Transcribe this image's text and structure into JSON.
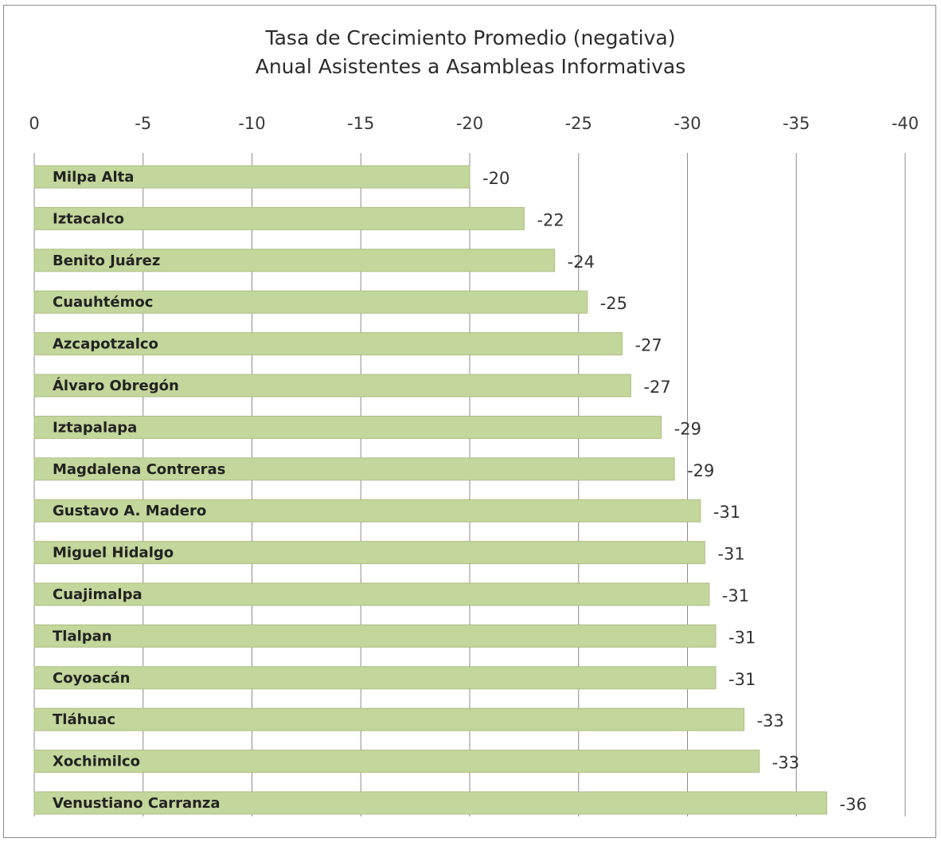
{
  "chart_data": {
    "type": "bar",
    "orientation": "horizontal",
    "title_line1": "Tasa de Crecimiento Promedio (negativa)",
    "title_line2": "Anual Asistentes a Asambleas Informativas",
    "xlabel": "",
    "ylabel": "",
    "xlim": [
      0,
      -40
    ],
    "x_ticks": [
      "0",
      "-5",
      "-10",
      "-15",
      "-20",
      "-25",
      "-30",
      "-35",
      "-40"
    ],
    "x_tick_values": [
      0,
      -5,
      -10,
      -15,
      -20,
      -25,
      -30,
      -35,
      -40
    ],
    "grid": true,
    "legend": "none",
    "bar_color": "#c3d69b",
    "bar_border": "#aebf85",
    "grid_color": "#8c8c8c",
    "categories": [
      "Milpa Alta",
      "Iztacalco",
      "Benito Juárez",
      "Cuauhtémoc",
      "Azcapotzalco",
      "Álvaro Obregón",
      "Iztapalapa",
      "Magdalena Contreras",
      "Gustavo A. Madero",
      "Miguel Hidalgo",
      "Cuajimalpa",
      "Tlalpan",
      "Coyoacán",
      "Tláhuac",
      "Xochimilco",
      "Venustiano Carranza"
    ],
    "values": [
      -20.0,
      -22.5,
      -23.9,
      -25.4,
      -27.0,
      -27.4,
      -28.8,
      -29.4,
      -30.6,
      -30.8,
      -31.0,
      -31.3,
      -31.3,
      -32.6,
      -33.3,
      -36.4
    ],
    "data_labels": [
      "-20",
      "-22",
      "-24",
      "-25",
      "-27",
      "-27",
      "-29",
      "-29",
      "-31",
      "-31",
      "-31",
      "-31",
      "-31",
      "-33",
      "-33",
      "-36"
    ]
  }
}
